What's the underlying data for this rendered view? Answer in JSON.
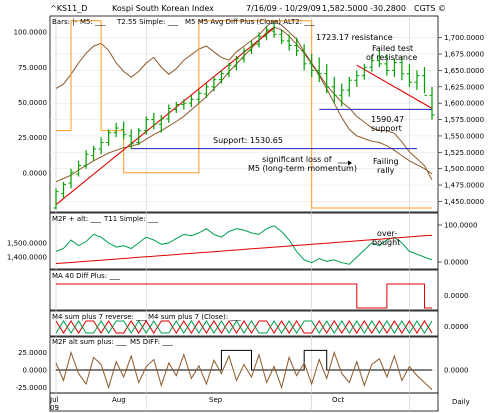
{
  "header": {
    "symbol": "^KS11_D",
    "name": "Kospi South Korean Index",
    "dates": "7/16/09 - 10/29/09",
    "last": "1,582.5000",
    "change": "-30.2800",
    "credit": "CGTS ©"
  },
  "legends": {
    "p1": [
      "Bars: |-",
      "M5: ___",
      "T2.55 Simple: ___",
      "M5 M5 Avg Diff Plus (Close) ALT2: ___"
    ],
    "p2": [
      "M2F + alt: ___",
      "T11 Simple: ___"
    ],
    "p3": [
      "MA 40 Diff Plus: ___"
    ],
    "p4": [
      "M4 sum plus 7 reverse: ___",
      "M4 sum plus 7 (Close): ___"
    ],
    "p5": [
      "M2F alt sum plus: ___",
      "M5 DIFF: ___"
    ]
  },
  "annotations": {
    "resistance": "1723.17 resistance",
    "failed_test": [
      "Failed test",
      "of resistance"
    ],
    "level_1590": [
      "1590.47",
      "support"
    ],
    "support": "Support: 1530.65",
    "momentum": [
      "significant loss of",
      "M5 (long-term momentum)"
    ],
    "failing_rally": [
      "Failing",
      "rally"
    ],
    "overbought": [
      "over-",
      "bought"
    ]
  },
  "x_labels": [
    "Jul",
    "Aug",
    "Sep",
    "Oct"
  ],
  "x_sublabel": "09",
  "freq_label": "Daily",
  "colors": {
    "bars": "#00a000",
    "trendline": "#e00000",
    "support": "#2020c0",
    "orange": "#ff9a20",
    "brown": "#8b5a2b",
    "teal": "#00a050",
    "black": "#000000"
  },
  "chart_data": [
    {
      "type": "line",
      "title": "Kospi South Korean Index",
      "note": "Daily bars, 7/16/09 - 10/29/09",
      "y_right_ticks": [
        "1,700.0000",
        "1,675.0000",
        "1,650.0000",
        "1,625.0000",
        "1,600.0000",
        "1,575.0000",
        "1,550.0000",
        "1,525.0000",
        "1,500.0000",
        "1,475.0000",
        "1,450.0000"
      ],
      "y_left_ticks": [
        "100.0000",
        "75.0000",
        "50.0000",
        "25.0000",
        "0.0000"
      ],
      "price_bars": [
        [
          1440,
          1470,
          1438,
          1465
        ],
        [
          1462,
          1480,
          1455,
          1476
        ],
        [
          1478,
          1500,
          1470,
          1495
        ],
        [
          1492,
          1512,
          1488,
          1505
        ],
        [
          1505,
          1528,
          1500,
          1522
        ],
        [
          1520,
          1535,
          1512,
          1530
        ],
        [
          1530,
          1548,
          1522,
          1540
        ],
        [
          1540,
          1560,
          1535,
          1555
        ],
        [
          1555,
          1570,
          1548,
          1562
        ],
        [
          1560,
          1572,
          1545,
          1552
        ],
        [
          1550,
          1560,
          1530,
          1538
        ],
        [
          1540,
          1562,
          1536,
          1558
        ],
        [
          1558,
          1580,
          1552,
          1575
        ],
        [
          1575,
          1585,
          1560,
          1568
        ],
        [
          1568,
          1582,
          1555,
          1576
        ],
        [
          1576,
          1598,
          1570,
          1592
        ],
        [
          1590,
          1602,
          1585,
          1598
        ],
        [
          1598,
          1606,
          1590,
          1600
        ],
        [
          1600,
          1612,
          1594,
          1606
        ],
        [
          1606,
          1620,
          1600,
          1615
        ],
        [
          1614,
          1630,
          1608,
          1625
        ],
        [
          1625,
          1640,
          1618,
          1636
        ],
        [
          1636,
          1650,
          1630,
          1645
        ],
        [
          1645,
          1662,
          1640,
          1658
        ],
        [
          1656,
          1672,
          1650,
          1668
        ],
        [
          1668,
          1685,
          1662,
          1680
        ],
        [
          1680,
          1695,
          1675,
          1690
        ],
        [
          1690,
          1708,
          1685,
          1702
        ],
        [
          1702,
          1718,
          1696,
          1712
        ],
        [
          1710,
          1723,
          1700,
          1705
        ],
        [
          1705,
          1712,
          1690,
          1695
        ],
        [
          1695,
          1705,
          1680,
          1688
        ],
        [
          1688,
          1700,
          1672,
          1680
        ],
        [
          1680,
          1690,
          1650,
          1660
        ],
        [
          1660,
          1675,
          1640,
          1650
        ],
        [
          1650,
          1670,
          1632,
          1645
        ],
        [
          1645,
          1660,
          1615,
          1625
        ],
        [
          1625,
          1640,
          1600,
          1612
        ],
        [
          1612,
          1630,
          1595,
          1620
        ],
        [
          1620,
          1640,
          1610,
          1635
        ],
        [
          1635,
          1650,
          1625,
          1642
        ],
        [
          1642,
          1660,
          1636,
          1655
        ],
        [
          1655,
          1672,
          1648,
          1665
        ],
        [
          1665,
          1680,
          1655,
          1660
        ],
        [
          1660,
          1675,
          1642,
          1650
        ],
        [
          1650,
          1668,
          1640,
          1662
        ],
        [
          1662,
          1672,
          1635,
          1645
        ],
        [
          1645,
          1660,
          1625,
          1632
        ],
        [
          1632,
          1650,
          1620,
          1642
        ],
        [
          1642,
          1655,
          1615,
          1612
        ],
        [
          1612,
          1625,
          1575,
          1582
        ]
      ],
      "trendline_up": [
        [
          0,
          1445
        ],
        [
          29,
          1715
        ]
      ],
      "trendline_down": [
        [
          40,
          1658
        ],
        [
          50,
          1592
        ]
      ],
      "support_level": 1530.65,
      "support_segment": [
        10,
        48
      ],
      "level_1590": 1590.47,
      "level_1590_segment": [
        35,
        50
      ],
      "resistance_level": 1723.17,
      "series": [
        {
          "name": "M5",
          "color": "#8b5a2b",
          "axis": "left",
          "values": [
            60,
            63,
            70,
            78,
            85,
            90,
            92,
            87,
            78,
            72,
            68,
            72,
            78,
            82,
            75,
            70,
            74,
            80,
            84,
            88,
            90,
            86,
            82,
            80,
            86,
            90,
            94,
            98,
            104,
            108,
            105,
            100,
            95,
            86,
            78,
            70,
            62,
            56,
            50,
            46,
            40,
            36,
            32,
            30,
            30,
            28,
            22,
            15,
            10,
            5,
            -5
          ]
        },
        {
          "name": "M5 M5 Avg Diff Plus (Close) ALT2",
          "color": "#ff9a20",
          "axis": "left",
          "values": [
            30,
            30,
            108,
            108,
            108,
            108,
            30,
            30,
            30,
            0,
            0,
            0,
            0,
            0,
            0,
            0,
            0,
            0,
            0,
            108,
            108,
            108,
            108,
            108,
            108,
            108,
            108,
            108,
            108,
            108,
            108,
            108,
            108,
            108,
            -25,
            -25,
            -25,
            -25,
            -25,
            -25,
            -25,
            -25,
            -25,
            -25,
            -25,
            -25,
            -25,
            -25,
            -25,
            -25,
            -25
          ]
        },
        {
          "name": "M5 (long-term momentum)",
          "color": "#8b5a2b",
          "axis": "right",
          "values": [
            1480,
            1485,
            1490,
            1498,
            1505,
            1512,
            1518,
            1524,
            1528,
            1532,
            1534,
            1538,
            1545,
            1552,
            1558,
            1565,
            1572,
            1580,
            1590,
            1600,
            1610,
            1622,
            1634,
            1648,
            1660,
            1672,
            1684,
            1696,
            1708,
            1716,
            1712,
            1702,
            1690,
            1676,
            1660,
            1642,
            1622,
            1600,
            1578,
            1560,
            1550,
            1546,
            1542,
            1540,
            1535,
            1528,
            1520,
            1512,
            1506,
            1500,
            1492
          ]
        }
      ]
    },
    {
      "type": "line",
      "title": "M2F + alt",
      "y_ticks": [
        "1,500.0000",
        "1,400.0000"
      ],
      "y_right_ticks": [
        "100.0000",
        "0.0000"
      ],
      "series": [
        {
          "name": "M2F + alt",
          "color": "#00a050",
          "values": [
            1440,
            1460,
            1520,
            1480,
            1510,
            1560,
            1540,
            1500,
            1470,
            1480,
            1460,
            1500,
            1540,
            1520,
            1490,
            1500,
            1530,
            1560,
            1550,
            1570,
            1600,
            1560,
            1540,
            1580,
            1600,
            1590,
            1570,
            1560,
            1600,
            1620,
            1580,
            1520,
            1440,
            1380,
            1360,
            1390,
            1370,
            1380,
            1360,
            1350,
            1400,
            1450,
            1500,
            1480,
            1520,
            1540,
            1500,
            1440,
            1420,
            1400,
            1380
          ]
        },
        {
          "name": "T11 Simple",
          "color": "#e00000",
          "values": [
            1355,
            1358,
            1362,
            1366,
            1370,
            1374,
            1378,
            1382,
            1386,
            1390,
            1394,
            1398,
            1402,
            1406,
            1410,
            1414,
            1418,
            1422,
            1426,
            1430,
            1434,
            1438,
            1442,
            1446,
            1450,
            1454,
            1458,
            1462,
            1466,
            1470,
            1474,
            1478,
            1482,
            1486,
            1490,
            1494,
            1498,
            1502,
            1506,
            1510,
            1514,
            1518,
            1522,
            1526,
            1530,
            1534,
            1538,
            1542,
            1546,
            1550,
            1554
          ]
        }
      ]
    },
    {
      "type": "line",
      "title": "MA 40 Diff Plus",
      "y_right_ticks": [
        "0.0000"
      ],
      "series": [
        {
          "name": "MA 40 Diff Plus",
          "color": "#e00000",
          "values": [
            1,
            1,
            1,
            1,
            1,
            1,
            1,
            1,
            1,
            1,
            1,
            1,
            1,
            1,
            1,
            1,
            1,
            1,
            1,
            1,
            1,
            1,
            1,
            1,
            1,
            1,
            1,
            1,
            1,
            1,
            1,
            1,
            1,
            1,
            1,
            1,
            1,
            1,
            1,
            1,
            -1,
            -1,
            -1,
            -1,
            1,
            1,
            1,
            1,
            1,
            -1,
            -1
          ]
        }
      ]
    },
    {
      "type": "line",
      "title": "M4 sum plus 7",
      "y_right_ticks": [
        "0.0000"
      ],
      "series": [
        {
          "name": "M4 sum plus 7 reverse",
          "color": "#e00000",
          "values": [
            1,
            -1,
            1,
            -1,
            1,
            1,
            -1,
            1,
            -1,
            -1,
            1,
            -1,
            1,
            -1,
            1,
            1,
            -1,
            1,
            -1,
            1,
            -1,
            1,
            -1,
            1,
            -1,
            1,
            -1,
            1,
            1,
            -1,
            1,
            -1,
            1,
            -1,
            -1,
            1,
            -1,
            1,
            -1,
            1,
            -1,
            1,
            -1,
            1,
            -1,
            1,
            -1,
            1,
            -1,
            1,
            -1
          ]
        },
        {
          "name": "M4 sum plus 7 (Close)",
          "color": "#00a050",
          "values": [
            -1,
            1,
            -1,
            1,
            -1,
            -1,
            1,
            -1,
            1,
            1,
            -1,
            1,
            -1,
            1,
            -1,
            -1,
            1,
            -1,
            1,
            -1,
            1,
            -1,
            1,
            -1,
            1,
            -1,
            1,
            -1,
            -1,
            1,
            -1,
            1,
            -1,
            1,
            1,
            -1,
            1,
            -1,
            1,
            -1,
            1,
            -1,
            1,
            -1,
            1,
            -1,
            1,
            -1,
            1,
            -1,
            1
          ]
        }
      ]
    },
    {
      "type": "line",
      "title": "M2F alt sum plus",
      "y_right_ticks": [
        "0.0000"
      ],
      "y_left_ticks": [
        "25.0000",
        "0.0000",
        "-25.0000"
      ],
      "series": [
        {
          "name": "M2F alt sum plus",
          "color": "#000000",
          "values": [
            0,
            0,
            0,
            0,
            0,
            0,
            0,
            0,
            0,
            0,
            0,
            0,
            0,
            0,
            0,
            0,
            0,
            0,
            0,
            0,
            0,
            0,
            28,
            28,
            28,
            28,
            0,
            0,
            0,
            0,
            0,
            0,
            0,
            28,
            28,
            28,
            0,
            0,
            0,
            0,
            0,
            0,
            0,
            0,
            0,
            0,
            0,
            0,
            0,
            0,
            0
          ]
        },
        {
          "name": "M5 DIFF",
          "color": "#8b5a2b",
          "values": [
            10,
            -15,
            25,
            -5,
            -20,
            18,
            8,
            -25,
            12,
            -10,
            20,
            -18,
            5,
            15,
            -22,
            10,
            -8,
            22,
            -12,
            6,
            -20,
            14,
            -5,
            20,
            -15,
            8,
            -10,
            22,
            -18,
            5,
            -25,
            18,
            -8,
            10,
            -20,
            15,
            -12,
            25,
            -5,
            -18,
            12,
            -22,
            8,
            16,
            -10,
            20,
            -15,
            5,
            -8,
            -18,
            -28
          ]
        }
      ]
    }
  ]
}
